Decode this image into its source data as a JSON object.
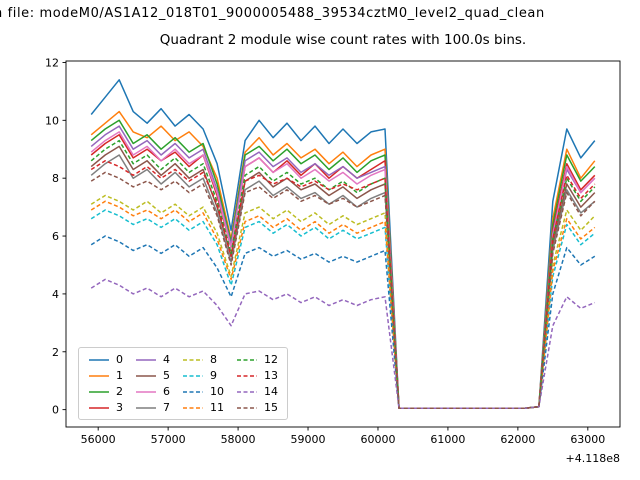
{
  "figure": {
    "background_color": "#ffffff",
    "text_color": "#000000"
  },
  "chart_data": {
    "type": "line",
    "file_line": "n file: modeM0/AS1A12_018T01_9000005488_39534cztM0_level2_quad_clean",
    "title": "Quadrant 2 module wise count rates with 100.0s bins.",
    "xlabel": "",
    "ylabel": "",
    "x_offset_label": "+4.118e8",
    "xlim": [
      55540,
      63460
    ],
    "ylim": [
      -0.6,
      12.05
    ],
    "grid": false,
    "legend_position": "lower left",
    "legend_columns": 4,
    "xticks": {
      "values": [
        56000,
        57000,
        58000,
        59000,
        60000,
        61000,
        62000,
        63000
      ],
      "labels": [
        "56000",
        "57000",
        "58000",
        "59000",
        "60000",
        "61000",
        "62000",
        "63000"
      ]
    },
    "yticks": {
      "values": [
        0,
        2,
        4,
        6,
        8,
        10,
        12
      ],
      "labels": [
        "0",
        "2",
        "4",
        "6",
        "8",
        "10",
        "12"
      ]
    },
    "x": [
      55900,
      56100,
      56300,
      56500,
      56700,
      56900,
      57100,
      57300,
      57500,
      57700,
      57900,
      58100,
      58300,
      58500,
      58700,
      58900,
      59100,
      59300,
      59500,
      59700,
      59900,
      60100,
      60300,
      60500,
      60700,
      60900,
      61100,
      61300,
      61500,
      61700,
      61900,
      62100,
      62300,
      62500,
      62700,
      62900,
      63100
    ],
    "series": [
      {
        "name": "0",
        "color": "#1f77b4",
        "dash": "solid",
        "values": [
          10.2,
          10.8,
          11.4,
          10.3,
          9.9,
          10.4,
          9.8,
          10.2,
          9.7,
          8.5,
          6.2,
          9.3,
          10.0,
          9.4,
          9.9,
          9.3,
          9.8,
          9.2,
          9.7,
          9.2,
          9.6,
          9.7,
          0.05,
          0.05,
          0.05,
          0.05,
          0.05,
          0.05,
          0.05,
          0.05,
          0.05,
          0.05,
          0.1,
          7.2,
          9.7,
          8.7,
          9.3
        ]
      },
      {
        "name": "1",
        "color": "#ff7f0e",
        "dash": "solid",
        "values": [
          9.5,
          9.9,
          10.3,
          9.6,
          9.4,
          9.8,
          9.3,
          9.6,
          9.1,
          8.0,
          5.9,
          8.9,
          9.4,
          8.8,
          9.2,
          8.7,
          9.0,
          8.5,
          8.9,
          8.4,
          8.8,
          9.0,
          0.05,
          0.05,
          0.05,
          0.05,
          0.05,
          0.05,
          0.05,
          0.05,
          0.05,
          0.05,
          0.1,
          6.6,
          9.0,
          8.0,
          8.6
        ]
      },
      {
        "name": "2",
        "color": "#2ca02c",
        "dash": "solid",
        "values": [
          9.3,
          9.7,
          10.0,
          9.2,
          9.5,
          9.0,
          9.4,
          8.9,
          9.2,
          7.8,
          5.8,
          8.8,
          9.1,
          8.6,
          9.0,
          8.5,
          8.8,
          8.3,
          8.7,
          8.2,
          8.6,
          8.8,
          0.05,
          0.05,
          0.05,
          0.05,
          0.05,
          0.05,
          0.05,
          0.05,
          0.05,
          0.05,
          0.1,
          6.4,
          8.8,
          7.9,
          8.4
        ]
      },
      {
        "name": "3",
        "color": "#d62728",
        "dash": "solid",
        "values": [
          8.8,
          9.2,
          9.5,
          8.7,
          9.0,
          8.6,
          8.9,
          8.4,
          8.8,
          7.4,
          5.6,
          8.4,
          8.7,
          8.2,
          8.6,
          8.1,
          8.5,
          8.0,
          8.4,
          8.0,
          8.3,
          8.6,
          0.05,
          0.05,
          0.05,
          0.05,
          0.05,
          0.05,
          0.05,
          0.05,
          0.05,
          0.05,
          0.1,
          6.2,
          8.5,
          7.6,
          8.1
        ]
      },
      {
        "name": "4",
        "color": "#9467bd",
        "dash": "solid",
        "values": [
          9.1,
          9.5,
          9.8,
          9.0,
          9.3,
          8.8,
          9.2,
          8.7,
          9.0,
          7.6,
          5.7,
          8.6,
          8.9,
          8.4,
          8.7,
          8.2,
          8.5,
          8.1,
          8.4,
          8.0,
          8.2,
          8.4,
          0.05,
          0.05,
          0.05,
          0.05,
          0.05,
          0.05,
          0.05,
          0.05,
          0.05,
          0.05,
          0.1,
          6.1,
          8.3,
          7.5,
          8.0
        ]
      },
      {
        "name": "5",
        "color": "#8c564b",
        "dash": "solid",
        "values": [
          8.4,
          8.8,
          9.1,
          8.3,
          8.6,
          8.1,
          8.5,
          8.0,
          8.3,
          7.0,
          5.3,
          7.9,
          8.2,
          7.7,
          8.0,
          7.6,
          7.8,
          7.4,
          7.7,
          7.3,
          7.6,
          7.8,
          0.05,
          0.05,
          0.05,
          0.05,
          0.05,
          0.05,
          0.05,
          0.05,
          0.05,
          0.05,
          0.1,
          5.7,
          7.8,
          7.0,
          7.5
        ]
      },
      {
        "name": "6",
        "color": "#e377c2",
        "dash": "solid",
        "values": [
          8.9,
          9.3,
          9.6,
          8.8,
          9.1,
          8.6,
          9.0,
          8.5,
          8.8,
          7.5,
          5.6,
          8.4,
          8.7,
          8.2,
          8.5,
          8.0,
          8.3,
          7.9,
          8.2,
          7.8,
          8.1,
          8.3,
          0.05,
          0.05,
          0.05,
          0.05,
          0.05,
          0.05,
          0.05,
          0.05,
          0.05,
          0.05,
          0.1,
          6.0,
          8.4,
          7.5,
          8.0
        ]
      },
      {
        "name": "7",
        "color": "#7f7f7f",
        "dash": "solid",
        "values": [
          8.1,
          8.5,
          8.8,
          8.0,
          8.3,
          7.8,
          8.2,
          7.7,
          8.0,
          6.8,
          5.1,
          7.6,
          7.9,
          7.4,
          7.7,
          7.3,
          7.5,
          7.1,
          7.4,
          7.0,
          7.3,
          7.5,
          0.05,
          0.05,
          0.05,
          0.05,
          0.05,
          0.05,
          0.05,
          0.05,
          0.05,
          0.05,
          0.1,
          5.5,
          7.6,
          6.8,
          7.2
        ]
      },
      {
        "name": "8",
        "color": "#bcbd22",
        "dash": "dashed",
        "values": [
          7.1,
          7.4,
          7.2,
          6.9,
          7.2,
          6.8,
          7.1,
          6.7,
          7.0,
          6.1,
          4.6,
          6.8,
          7.0,
          6.6,
          6.9,
          6.5,
          6.8,
          6.4,
          6.7,
          6.4,
          6.6,
          6.8,
          0.05,
          0.05,
          0.05,
          0.05,
          0.05,
          0.05,
          0.05,
          0.05,
          0.05,
          0.05,
          0.1,
          5.0,
          6.9,
          6.2,
          6.7
        ]
      },
      {
        "name": "9",
        "color": "#17becf",
        "dash": "dashed",
        "values": [
          6.6,
          6.9,
          6.7,
          6.4,
          6.6,
          6.3,
          6.6,
          6.2,
          6.5,
          5.7,
          4.3,
          6.3,
          6.5,
          6.1,
          6.4,
          6.0,
          6.3,
          5.9,
          6.2,
          5.9,
          6.1,
          6.3,
          0.05,
          0.05,
          0.05,
          0.05,
          0.05,
          0.05,
          0.05,
          0.05,
          0.05,
          0.05,
          0.1,
          4.6,
          6.4,
          5.7,
          6.1
        ]
      },
      {
        "name": "10",
        "color": "#1f77b4",
        "dash": "dashed",
        "values": [
          5.7,
          6.0,
          5.8,
          5.5,
          5.7,
          5.4,
          5.7,
          5.3,
          5.6,
          4.9,
          3.9,
          5.4,
          5.6,
          5.3,
          5.5,
          5.2,
          5.4,
          5.1,
          5.3,
          5.1,
          5.3,
          5.5,
          0.05,
          0.05,
          0.05,
          0.05,
          0.05,
          0.05,
          0.05,
          0.05,
          0.05,
          0.05,
          0.1,
          4.0,
          5.6,
          5.0,
          5.3
        ]
      },
      {
        "name": "11",
        "color": "#ff7f0e",
        "dash": "dashed",
        "values": [
          6.9,
          7.2,
          7.0,
          6.7,
          6.9,
          6.6,
          6.9,
          6.5,
          6.8,
          5.9,
          4.5,
          6.5,
          6.7,
          6.3,
          6.6,
          6.2,
          6.5,
          6.1,
          6.4,
          6.1,
          6.3,
          6.5,
          0.05,
          0.05,
          0.05,
          0.05,
          0.05,
          0.05,
          0.05,
          0.05,
          0.05,
          0.05,
          0.1,
          4.8,
          6.6,
          5.9,
          6.3
        ]
      },
      {
        "name": "12",
        "color": "#2ca02c",
        "dash": "dashed",
        "values": [
          8.6,
          9.0,
          9.3,
          8.5,
          8.8,
          8.3,
          8.7,
          8.2,
          8.5,
          7.2,
          5.4,
          8.1,
          8.4,
          7.9,
          8.2,
          7.8,
          8.0,
          7.6,
          7.9,
          7.5,
          7.8,
          8.0,
          0.05,
          0.05,
          0.05,
          0.05,
          0.05,
          0.05,
          0.05,
          0.05,
          0.05,
          0.05,
          0.1,
          5.9,
          8.0,
          7.2,
          7.7
        ]
      },
      {
        "name": "13",
        "color": "#d62728",
        "dash": "dashed",
        "values": [
          8.3,
          8.6,
          8.4,
          8.1,
          8.4,
          8.0,
          8.3,
          7.9,
          8.2,
          7.1,
          5.3,
          7.9,
          8.1,
          7.8,
          8.0,
          7.7,
          7.9,
          7.6,
          7.8,
          7.6,
          7.8,
          8.0,
          0.05,
          0.05,
          0.05,
          0.05,
          0.05,
          0.05,
          0.05,
          0.05,
          0.05,
          0.05,
          0.1,
          5.9,
          8.1,
          7.3,
          7.8
        ]
      },
      {
        "name": "14",
        "color": "#9467bd",
        "dash": "dashed",
        "values": [
          4.2,
          4.5,
          4.3,
          4.0,
          4.2,
          3.9,
          4.2,
          3.9,
          4.1,
          3.6,
          2.9,
          4.0,
          4.1,
          3.8,
          4.0,
          3.7,
          3.9,
          3.6,
          3.8,
          3.6,
          3.8,
          3.9,
          0.05,
          0.05,
          0.05,
          0.05,
          0.05,
          0.05,
          0.05,
          0.05,
          0.05,
          0.05,
          0.1,
          2.9,
          3.9,
          3.5,
          3.7
        ]
      },
      {
        "name": "15",
        "color": "#8c564b",
        "dash": "dashed",
        "values": [
          7.9,
          8.2,
          8.0,
          7.7,
          7.9,
          7.6,
          7.9,
          7.5,
          7.8,
          6.7,
          5.0,
          7.5,
          7.7,
          7.3,
          7.6,
          7.2,
          7.4,
          7.1,
          7.3,
          7.0,
          7.2,
          7.4,
          0.05,
          0.05,
          0.05,
          0.05,
          0.05,
          0.05,
          0.05,
          0.05,
          0.05,
          0.05,
          0.1,
          5.4,
          7.5,
          6.7,
          7.2
        ]
      }
    ]
  }
}
